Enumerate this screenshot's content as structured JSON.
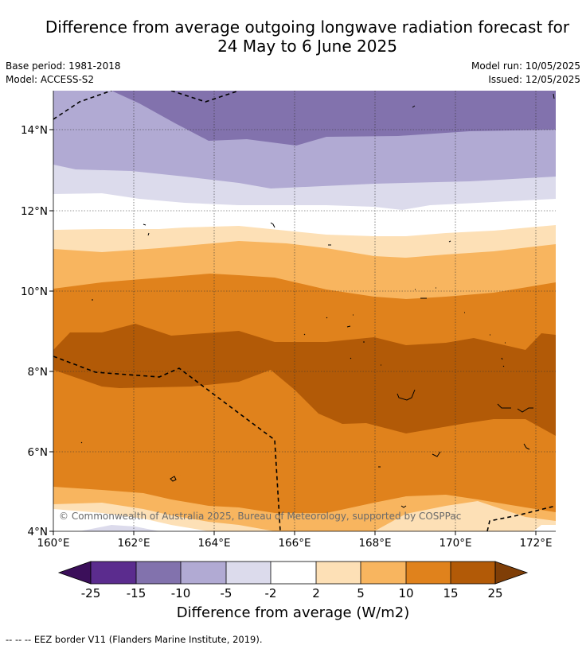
{
  "title_line1": "Difference from average outgoing longwave radiation forecast for",
  "title_line2": "24 May to 6 June 2025",
  "base_period": "Base period: 1981-2018",
  "model": "Model: ACCESS-S2",
  "model_run": "Model run: 10/05/2025",
  "issued": "Issued: 12/05/2025",
  "copyright": "© Commonwealth of Australia 2025, Bureau of Meteorology, supported by COSPPac",
  "y_ticks": [
    "4°N",
    "6°N",
    "8°N",
    "10°N",
    "12°N",
    "14°N"
  ],
  "x_ticks": [
    "160°E",
    "162°E",
    "164°E",
    "166°E",
    "168°E",
    "170°E",
    "172°E"
  ],
  "colorbar": {
    "title": "Difference from average (W/m2)",
    "tick_labels": [
      "-25",
      "-15",
      "-10",
      "-5",
      "-2",
      "2",
      "5",
      "10",
      "15",
      "25"
    ],
    "colors": {
      "lt25": "#3b0f5a",
      "m25_m15": "#5b2c8e",
      "m15_m10": "#8272ad",
      "m10_m5": "#b1aad3",
      "m5_m2": "#dcdbec",
      "m2_2": "#ffffff",
      "2_5": "#fde0b6",
      "5_10": "#f8b55f",
      "10_15": "#e0821c",
      "15_25": "#b25a07",
      "gt25": "#7f3e07"
    }
  },
  "legend_line": "--  --  -- EEZ border V11 (Flanders Marine Institute, 2019)."
}
